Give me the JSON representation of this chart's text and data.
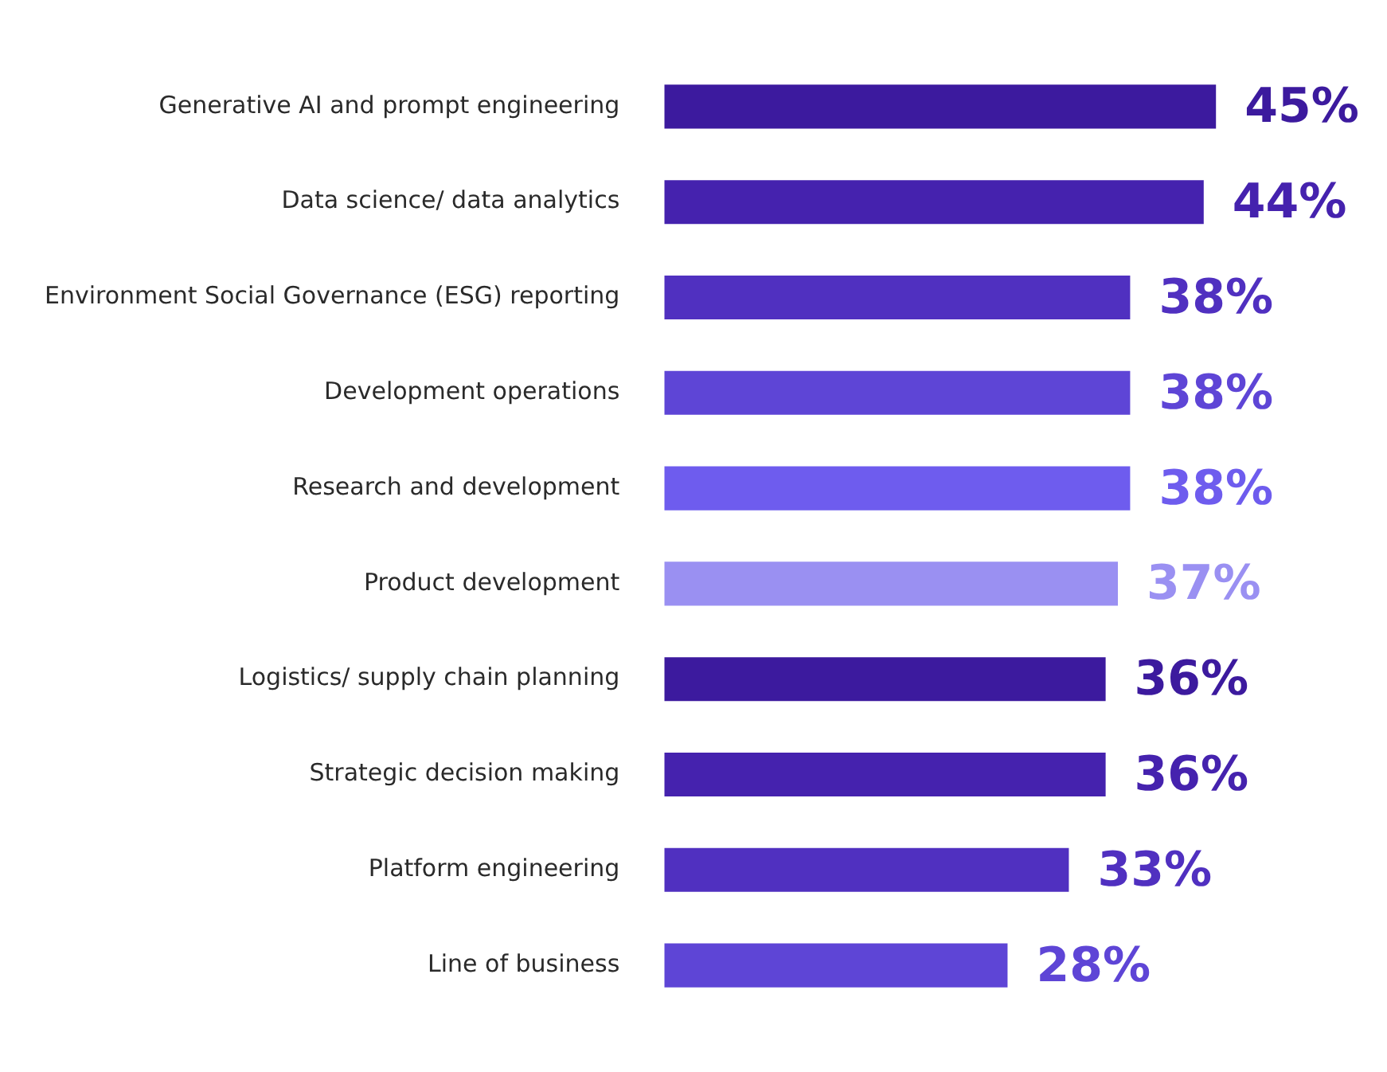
{
  "chart_data": {
    "type": "bar",
    "orientation": "horizontal",
    "categories": [
      "Generative AI and prompt engineering",
      "Data science/ data analytics",
      "Environment Social Governance (ESG) reporting",
      "Development operations",
      "Research and development",
      "Product development",
      "Logistics/ supply chain planning",
      "Strategic decision making",
      "Platform engineering",
      "Line of business"
    ],
    "values": [
      45,
      44,
      38,
      38,
      38,
      37,
      36,
      36,
      33,
      28
    ],
    "colors": [
      "#3c1a9e",
      "#4522ae",
      "#5030c0",
      "#5e45d6",
      "#6e5cee",
      "#9a90f2",
      "#3c1a9e",
      "#4522ae",
      "#5030c0",
      "#5e45d6"
    ],
    "value_labels": [
      "45%",
      "44%",
      "38%",
      "38%",
      "38%",
      "37%",
      "36%",
      "36%",
      "33%",
      "28%"
    ],
    "legend": false
  }
}
